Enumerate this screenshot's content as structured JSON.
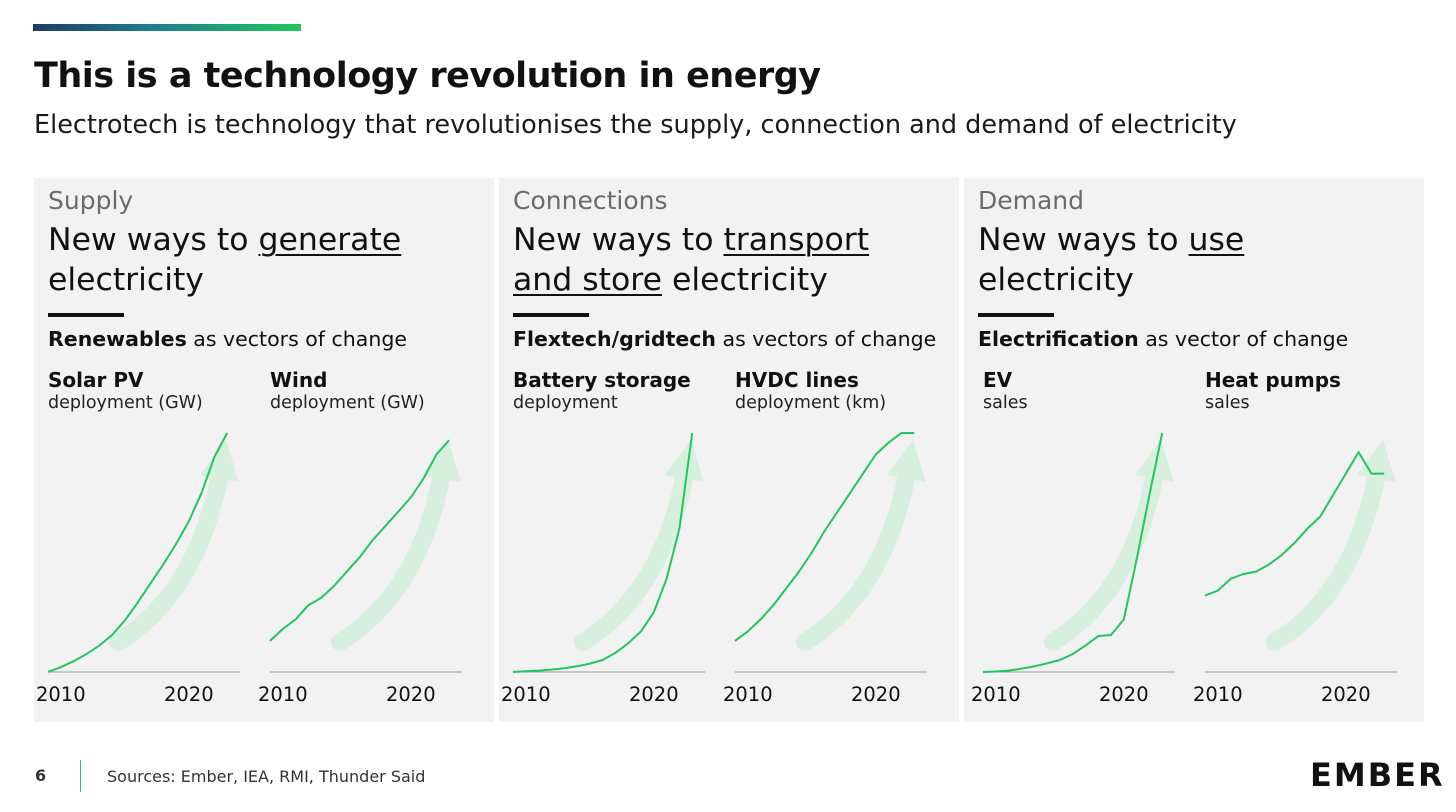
{
  "header": {
    "title": "This is a technology revolution in energy",
    "subtitle": "Electrotech is technology that revolutionises the supply, connection and demand of electricity"
  },
  "panels": [
    {
      "category": "Supply",
      "head_pre": "New ways to ",
      "head_u": "generate",
      "head_post": "electricity",
      "vec_bold": "Renewables",
      "vec_rest": " as vectors of change"
    },
    {
      "category": "Connections",
      "head_pre": "New ways to ",
      "head_u": "transport",
      "head_u2": "and store",
      "head_post": " electricity",
      "vec_bold": "Flextech/gridtech",
      "vec_rest": " as vectors of change"
    },
    {
      "category": "Demand",
      "head_pre": "New ways to ",
      "head_u": "use",
      "head_post": "electricity",
      "vec_bold": "Electrification",
      "vec_rest": " as vector of change"
    }
  ],
  "footer": {
    "page_number": "6",
    "sources": "Sources: Ember, IEA, RMI, Thunder Said",
    "logo": "EMBER"
  },
  "colors": {
    "line": "#22c55e",
    "arrow": "#d5f0dc",
    "panel": "#f2f2f2"
  },
  "chart_data": [
    {
      "type": "line",
      "title": "Solar PV",
      "subtitle": "deployment (GW)",
      "xlabel": "",
      "ylabel": "",
      "tick_labels": [
        "2010",
        "2020"
      ],
      "x": [
        2009,
        2010,
        2011,
        2012,
        2013,
        2014,
        2015,
        2016,
        2017,
        2018,
        2019,
        2020,
        2021,
        2022,
        2023
      ],
      "values": [
        0,
        0.02,
        0.045,
        0.075,
        0.11,
        0.155,
        0.215,
        0.29,
        0.37,
        0.45,
        0.535,
        0.63,
        0.75,
        0.9,
        1.0
      ],
      "xlim": [
        2009,
        2024
      ],
      "ylim": [
        0,
        1
      ]
    },
    {
      "type": "line",
      "title": "Wind",
      "subtitle": "deployment (GW)",
      "xlabel": "",
      "ylabel": "",
      "tick_labels": [
        "2010",
        "2020"
      ],
      "x": [
        2009,
        2010,
        2011,
        2012,
        2013,
        2014,
        2015,
        2016,
        2017,
        2018,
        2019,
        2020,
        2021,
        2022,
        2023
      ],
      "values": [
        0.13,
        0.18,
        0.22,
        0.28,
        0.31,
        0.36,
        0.42,
        0.48,
        0.55,
        0.61,
        0.67,
        0.73,
        0.81,
        0.91,
        0.97
      ],
      "xlim": [
        2009,
        2024
      ],
      "ylim": [
        0,
        1
      ]
    },
    {
      "type": "line",
      "title": "Battery storage",
      "subtitle": "deployment",
      "xlabel": "",
      "ylabel": "",
      "tick_labels": [
        "2010",
        "2020"
      ],
      "x": [
        2009,
        2010,
        2011,
        2012,
        2013,
        2014,
        2015,
        2016,
        2017,
        2018,
        2019,
        2020,
        2021,
        2022,
        2023
      ],
      "values": [
        0,
        0.003,
        0.006,
        0.01,
        0.016,
        0.024,
        0.035,
        0.05,
        0.08,
        0.12,
        0.17,
        0.25,
        0.39,
        0.6,
        1.0
      ],
      "xlim": [
        2009,
        2024
      ],
      "ylim": [
        0,
        1
      ]
    },
    {
      "type": "line",
      "title": "HVDC lines",
      "subtitle": "deployment (km)",
      "xlabel": "",
      "ylabel": "",
      "tick_labels": [
        "2010",
        "2020"
      ],
      "x": [
        2009,
        2010,
        2011,
        2012,
        2013,
        2014,
        2015,
        2016,
        2017,
        2018,
        2019,
        2020,
        2021,
        2022,
        2023
      ],
      "values": [
        0.13,
        0.17,
        0.22,
        0.28,
        0.35,
        0.42,
        0.5,
        0.59,
        0.67,
        0.75,
        0.83,
        0.91,
        0.96,
        1.0,
        1.0
      ],
      "xlim": [
        2009,
        2024
      ],
      "ylim": [
        0,
        1
      ]
    },
    {
      "type": "line",
      "title": "EV",
      "subtitle": "sales",
      "xlabel": "",
      "ylabel": "",
      "tick_labels": [
        "2010",
        "2020"
      ],
      "x": [
        2009,
        2010,
        2011,
        2012,
        2013,
        2014,
        2015,
        2016,
        2017,
        2018,
        2019,
        2020,
        2021,
        2022,
        2023
      ],
      "values": [
        0,
        0.002,
        0.006,
        0.014,
        0.024,
        0.036,
        0.05,
        0.075,
        0.11,
        0.15,
        0.155,
        0.22,
        0.47,
        0.74,
        1.0
      ],
      "xlim": [
        2009,
        2024
      ],
      "ylim": [
        0,
        1
      ]
    },
    {
      "type": "line",
      "title": "Heat pumps",
      "subtitle": "sales",
      "xlabel": "",
      "ylabel": "",
      "tick_labels": [
        "2010",
        "2020"
      ],
      "x": [
        2009,
        2010,
        2011,
        2012,
        2013,
        2014,
        2015,
        2016,
        2017,
        2018,
        2019,
        2020,
        2021,
        2022,
        2023
      ],
      "values": [
        0.32,
        0.34,
        0.39,
        0.41,
        0.42,
        0.45,
        0.49,
        0.54,
        0.6,
        0.65,
        0.74,
        0.83,
        0.92,
        0.83,
        0.83
      ],
      "xlim": [
        2009,
        2024
      ],
      "ylim": [
        0,
        1
      ]
    }
  ]
}
